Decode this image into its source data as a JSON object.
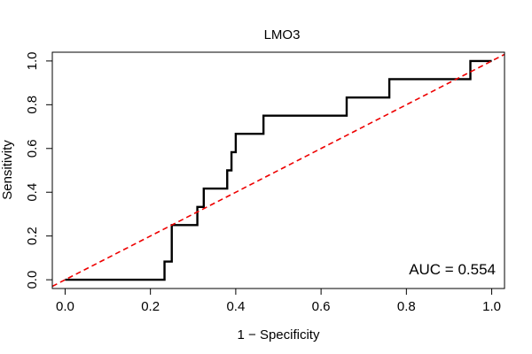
{
  "chart_data": {
    "type": "line",
    "title": "LMO3",
    "xlabel": "1 − Specificity",
    "ylabel": "Sensitivity",
    "xlim": [
      -0.03,
      1.03
    ],
    "ylim": [
      -0.04,
      1.04
    ],
    "xticks": [
      0.0,
      0.2,
      0.4,
      0.6,
      0.8,
      1.0
    ],
    "xtick_labels": [
      "0.0",
      "0.2",
      "0.4",
      "0.6",
      "0.8",
      "1.0"
    ],
    "yticks": [
      0.0,
      0.2,
      0.4,
      0.6,
      0.8,
      1.0
    ],
    "ytick_labels": [
      "0.0",
      "0.2",
      "0.4",
      "0.6",
      "0.8",
      "1.0"
    ],
    "grid": false,
    "annotation": "AUC = 0.554",
    "series": [
      {
        "style": "step",
        "color": "#000000",
        "x": [
          0.0,
          0.233,
          0.233,
          0.25,
          0.25,
          0.31,
          0.31,
          0.325,
          0.325,
          0.38,
          0.38,
          0.39,
          0.39,
          0.4,
          0.4,
          0.465,
          0.465,
          0.66,
          0.66,
          0.76,
          0.76,
          0.95,
          0.95,
          1.0
        ],
        "y": [
          0.0,
          0.0,
          0.083,
          0.083,
          0.25,
          0.25,
          0.333,
          0.333,
          0.417,
          0.417,
          0.5,
          0.5,
          0.583,
          0.583,
          0.667,
          0.667,
          0.75,
          0.75,
          0.833,
          0.833,
          0.917,
          0.917,
          1.0,
          1.0
        ]
      },
      {
        "style": "dashed",
        "color": "#ee0000",
        "x": [
          -0.03,
          1.03
        ],
        "y": [
          -0.03,
          1.03
        ]
      }
    ]
  }
}
